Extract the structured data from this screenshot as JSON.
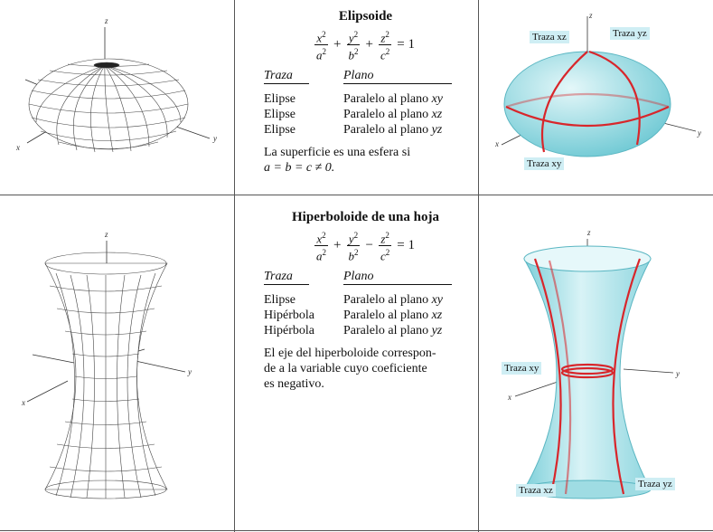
{
  "rows": [
    {
      "title": "Elipsoide",
      "equation": {
        "t1": {
          "num": "x",
          "den": "a"
        },
        "op1": "+",
        "t2": {
          "num": "y",
          "den": "b"
        },
        "op2": "+",
        "t3": {
          "num": "z",
          "den": "c"
        },
        "rhs": "= 1"
      },
      "header": {
        "trace": "Traza",
        "plane": "Plano"
      },
      "traces": [
        {
          "trace": "Elipse",
          "plane": "Paralelo al plano",
          "var": "xy"
        },
        {
          "trace": "Elipse",
          "plane": "Paralelo al plano",
          "var": "xz"
        },
        {
          "trace": "Elipse",
          "plane": "Paralelo al plano",
          "var": "yz"
        }
      ],
      "note_line1": "La superficie es una esfera si",
      "note_line2": "a = b = c ≠ 0.",
      "labels": {
        "xz": "Traza xz",
        "yz": "Traza yz",
        "xy": "Traza xy"
      }
    },
    {
      "title": "Hiperboloide de una hoja",
      "equation": {
        "t1": {
          "num": "x",
          "den": "a"
        },
        "op1": "+",
        "t2": {
          "num": "y",
          "den": "b"
        },
        "op2": "−",
        "t3": {
          "num": "z",
          "den": "c"
        },
        "rhs": "= 1"
      },
      "header": {
        "trace": "Traza",
        "plane": "Plano"
      },
      "traces": [
        {
          "trace": "Elipse",
          "plane": "Paralelo al plano",
          "var": "xy"
        },
        {
          "trace": "Hipérbola",
          "plane": "Paralelo al plano",
          "var": "xz"
        },
        {
          "trace": "Hipérbola",
          "plane": "Paralelo al plano",
          "var": "yz"
        }
      ],
      "note": "El eje del hiperboloide corresponde a la variable cuyo coeficiente es negativo.",
      "note_lines": [
        "El eje del hiperboloide correspon-",
        "de a la variable cuyo coeficiente",
        "es negativo."
      ],
      "labels": {
        "xy": "Traza xy",
        "xz": "Traza xz",
        "yz": "Traza yz"
      }
    }
  ],
  "axes": {
    "x": "x",
    "y": "y",
    "z": "z"
  },
  "colors": {
    "surface": "#a8e2e8",
    "trace": "#d8262b",
    "label_bg": "#cfeef4"
  }
}
